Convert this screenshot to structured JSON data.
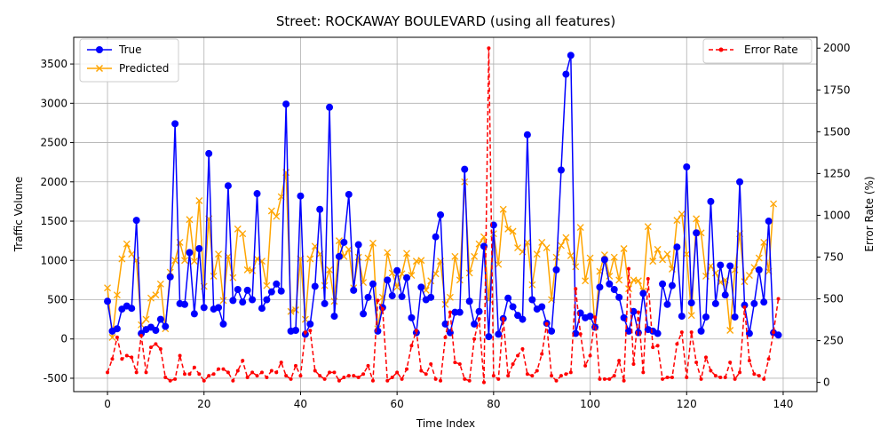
{
  "chart_data": {
    "type": "line",
    "title": "Street: ROCKAWAY BOULEVARD (using all features)",
    "xlabel": "Time Index",
    "ylabel": "Traffic Volume",
    "y2label": "Error Rate (%)",
    "xlim": [
      -7,
      147
    ],
    "ylim": [
      -670,
      3840
    ],
    "y2lim": [
      -55,
      2065
    ],
    "xticks": [
      0,
      20,
      40,
      60,
      80,
      100,
      120,
      140
    ],
    "yticks": [
      -500,
      0,
      500,
      1000,
      1500,
      2000,
      2500,
      3000,
      3500
    ],
    "y2ticks": [
      0,
      250,
      500,
      750,
      1000,
      1250,
      1500,
      1750,
      2000
    ],
    "grid": true,
    "colors": {
      "true": "#0000ff",
      "predicted": "#ffa500",
      "error": "#ff0000"
    },
    "legend_left": [
      "True",
      "Predicted"
    ],
    "legend_right": [
      "Error Rate"
    ],
    "series": [
      {
        "name": "True",
        "values": [
          480,
          100,
          130,
          380,
          420,
          390,
          1510,
          70,
          120,
          150,
          110,
          250,
          160,
          790,
          2740,
          450,
          440,
          1100,
          320,
          1150,
          400,
          2360,
          380,
          400,
          190,
          1950,
          490,
          630,
          470,
          620,
          500,
          1850,
          390,
          500,
          600,
          700,
          610,
          2990,
          100,
          110,
          1820,
          60,
          190,
          670,
          1650,
          450,
          2950,
          290,
          1050,
          1230,
          1840,
          620,
          1200,
          320,
          530,
          700,
          100,
          400,
          750,
          550,
          870,
          540,
          780,
          270,
          80,
          660,
          500,
          530,
          1300,
          1580,
          190,
          80,
          340,
          340,
          2160,
          480,
          190,
          350,
          1180,
          30,
          1450,
          60,
          260,
          520,
          410,
          300,
          250,
          2600,
          500,
          380,
          410,
          200,
          100,
          880,
          2150,
          3370,
          3610,
          70,
          330,
          270,
          290,
          150,
          660,
          1010,
          700,
          630,
          530,
          270,
          100,
          350,
          80,
          580,
          120,
          100,
          70,
          700,
          440,
          680,
          1170,
          290,
          2190,
          460,
          1350,
          100,
          280,
          1750,
          450,
          940,
          560,
          930,
          280,
          2000,
          430,
          70,
          450,
          880,
          470,
          1500,
          80,
          50
        ]
      },
      {
        "name": "Predicted",
        "values": [
          650,
          20,
          560,
          1020,
          1210,
          1080,
          1000,
          180,
          250,
          520,
          560,
          700,
          130,
          850,
          1000,
          1230,
          1000,
          1520,
          990,
          1760,
          670,
          1530,
          800,
          1080,
          490,
          1050,
          780,
          1400,
          1340,
          880,
          870,
          1020,
          990,
          680,
          1630,
          1560,
          1810,
          2120,
          350,
          370,
          1020,
          250,
          1020,
          1180,
          1080,
          680,
          880,
          480,
          1250,
          1050,
          1140,
          650,
          1040,
          720,
          1030,
          1220,
          130,
          530,
          1100,
          840,
          660,
          830,
          1090,
          810,
          990,
          1000,
          620,
          740,
          830,
          990,
          440,
          530,
          1050,
          750,
          2000,
          840,
          1050,
          1210,
          1300,
          500,
          1340,
          950,
          1650,
          1400,
          1370,
          1160,
          1110,
          1230,
          690,
          1080,
          1230,
          1160,
          500,
          1040,
          1190,
          1290,
          1060,
          920,
          1420,
          740,
          1030,
          150,
          860,
          1070,
          800,
          1040,
          750,
          1150,
          640,
          750,
          740,
          610,
          1430,
          990,
          1140,
          1010,
          1080,
          890,
          1510,
          1590,
          1080,
          300,
          1530,
          1350,
          800,
          930,
          840,
          720,
          750,
          110,
          880,
          1340,
          730,
          810,
          910,
          1030,
          1230,
          860,
          1720
        ]
      },
      {
        "name": "Error Rate",
        "values": [
          60,
          140,
          270,
          140,
          160,
          150,
          60,
          280,
          60,
          210,
          230,
          200,
          30,
          10,
          20,
          160,
          50,
          50,
          90,
          50,
          10,
          40,
          50,
          80,
          80,
          60,
          10,
          70,
          130,
          30,
          60,
          40,
          60,
          30,
          70,
          60,
          120,
          40,
          20,
          100,
          40,
          300,
          310,
          70,
          40,
          20,
          60,
          60,
          10,
          30,
          40,
          40,
          30,
          50,
          100,
          10,
          490,
          440,
          10,
          30,
          60,
          20,
          80,
          220,
          310,
          70,
          50,
          110,
          20,
          10,
          270,
          420,
          120,
          110,
          20,
          10,
          260,
          380,
          0,
          2000,
          40,
          20,
          380,
          40,
          110,
          160,
          200,
          50,
          40,
          70,
          170,
          350,
          40,
          10,
          40,
          50,
          60,
          560,
          290,
          100,
          160,
          390,
          20,
          20,
          20,
          40,
          130,
          10,
          680,
          110,
          420,
          60,
          620,
          210,
          220,
          20,
          30,
          30,
          230,
          300,
          30,
          300,
          120,
          20,
          150,
          70,
          40,
          30,
          30,
          120,
          20,
          60,
          450,
          130,
          50,
          40,
          20,
          140,
          300,
          500
        ]
      }
    ]
  }
}
